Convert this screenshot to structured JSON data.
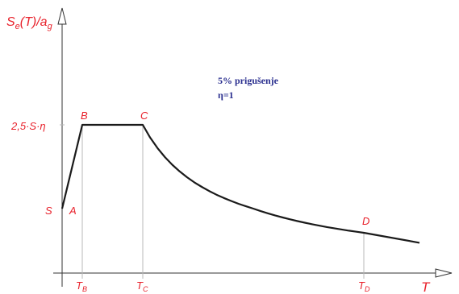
{
  "chart_data": {
    "type": "line",
    "title": "",
    "ylabel": "Se(T)/ag",
    "ylabel_parts": {
      "main": "S",
      "sub1": "e",
      "mid": "(T)/a",
      "sub2": "g"
    },
    "xlabel": "T",
    "y_ticks": [
      "2,5·S·η",
      "S"
    ],
    "x_ticks": [
      {
        "main": "T",
        "sub": "B"
      },
      {
        "main": "T",
        "sub": "C"
      },
      {
        "main": "T",
        "sub": "D"
      }
    ],
    "annotation_lines": [
      "5% prigušenje",
      "η=1"
    ],
    "series": [
      {
        "points": [
          {
            "label": "A",
            "x": 0.0,
            "y": 1.0
          },
          {
            "label": "B",
            "x": 0.15,
            "y": 2.5
          },
          {
            "label": "C",
            "x": 0.5,
            "y": 2.5
          },
          {
            "label": "D",
            "x": 2.0,
            "y": 0.625
          },
          {
            "label": "",
            "x": 2.3,
            "y": 0.47
          }
        ]
      }
    ],
    "curve_between_C_and_D": "2.5 * Tc / T",
    "colors": {
      "labels": "#e8212b",
      "note": "#2a2f8f",
      "curve": "#1a1a1a",
      "axes": "#333333",
      "guides": "#b8b8b8"
    }
  }
}
